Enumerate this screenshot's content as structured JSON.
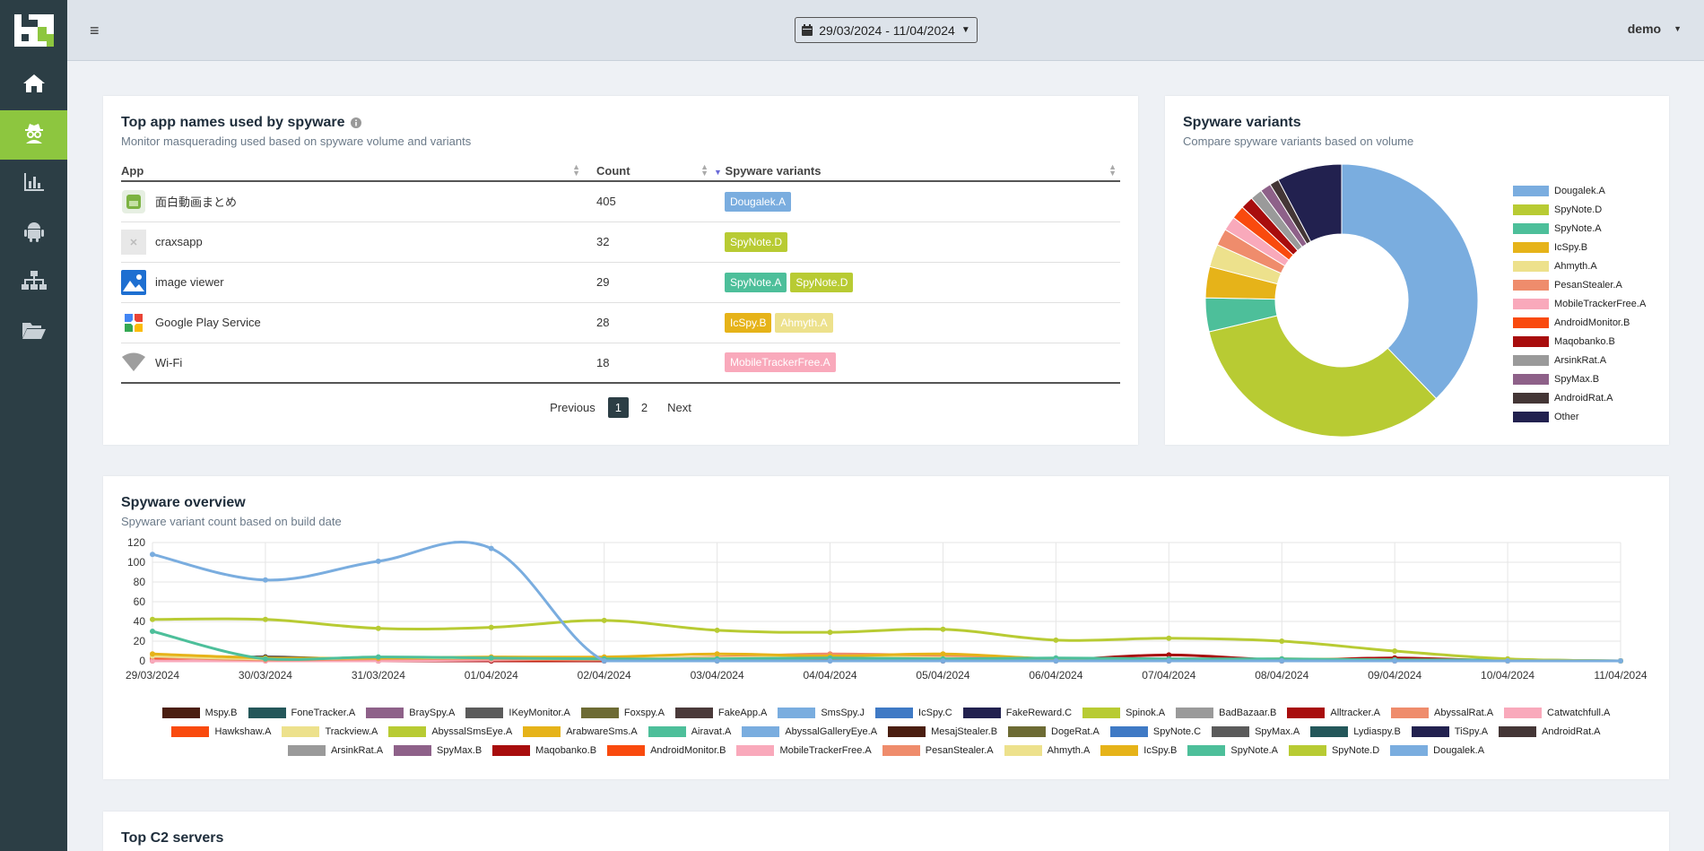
{
  "nav": [
    {
      "name": "home-icon",
      "active": false
    },
    {
      "name": "spy-icon",
      "active": true
    },
    {
      "name": "bar-chart-icon",
      "active": false
    },
    {
      "name": "android-icon",
      "active": false
    },
    {
      "name": "sitemap-icon",
      "active": false
    },
    {
      "name": "folder-open-icon",
      "active": false
    }
  ],
  "topbar": {
    "menu_icon": "≡",
    "date_range": "29/03/2024 - 11/04/2024",
    "user": "demo"
  },
  "top_apps": {
    "title": "Top app names used by spyware",
    "subtitle": "Monitor masquerading used based on spyware volume and variants",
    "columns": {
      "app": "App",
      "count": "Count",
      "variants": "Spyware variants"
    },
    "rows": [
      {
        "app": "面白動画まとめ",
        "icon": "green-app-icon",
        "count": "405",
        "variants": [
          {
            "label": "Dougalek.A",
            "color": "#7aaddf"
          }
        ]
      },
      {
        "app": "craxsapp",
        "icon": "placeholder-icon",
        "count": "32",
        "variants": [
          {
            "label": "SpyNote.D",
            "color": "#b8cb33"
          }
        ]
      },
      {
        "app": "image viewer",
        "icon": "image-viewer-icon",
        "count": "29",
        "variants": [
          {
            "label": "SpyNote.A",
            "color": "#4dbf9a"
          },
          {
            "label": "SpyNote.D",
            "color": "#b8cb33"
          }
        ]
      },
      {
        "app": "Google Play Service",
        "icon": "puzzle-icon",
        "count": "28",
        "variants": [
          {
            "label": "IcSpy.B",
            "color": "#e6b319"
          },
          {
            "label": "Ahmyth.A",
            "color": "#ede18c"
          }
        ]
      },
      {
        "app": "Wi-Fi",
        "icon": "wifi-icon",
        "count": "18",
        "variants": [
          {
            "label": "MobileTrackerFree.A",
            "color": "#f9a9bb"
          }
        ]
      }
    ],
    "pager": {
      "previous": "Previous",
      "pages": [
        "1",
        "2"
      ],
      "next": "Next"
    }
  },
  "variants_card": {
    "title": "Spyware variants",
    "subtitle": "Compare spyware variants based on volume"
  },
  "overview_card": {
    "title": "Spyware overview",
    "subtitle": "Spyware variant count based on build date"
  },
  "c2_card": {
    "title": "Top C2 servers"
  },
  "chart_data": [
    {
      "type": "pie",
      "title": "Spyware variants",
      "legend": "right",
      "slices": [
        {
          "label": "Dougalek.A",
          "value": 37.8,
          "color": "#7aaddf"
        },
        {
          "label": "SpyNote.D",
          "value": 33.5,
          "color": "#b8cb33"
        },
        {
          "label": "SpyNote.A",
          "value": 4.0,
          "color": "#4dbf9a"
        },
        {
          "label": "IcSpy.B",
          "value": 3.7,
          "color": "#e6b319"
        },
        {
          "label": "Ahmyth.A",
          "value": 2.7,
          "color": "#ede18c"
        },
        {
          "label": "PesanStealer.A",
          "value": 2.0,
          "color": "#ef8c6c"
        },
        {
          "label": "MobileTrackerFree.A",
          "value": 1.7,
          "color": "#f9a9bb"
        },
        {
          "label": "AndroidMonitor.B",
          "value": 1.6,
          "color": "#f94a0e"
        },
        {
          "label": "Maqobanko.B",
          "value": 1.5,
          "color": "#a80d0d"
        },
        {
          "label": "ArsinkRat.A",
          "value": 1.4,
          "color": "#9a9a9a"
        },
        {
          "label": "SpyMax.B",
          "value": 1.3,
          "color": "#8e6189"
        },
        {
          "label": "AndroidRat.A",
          "value": 1.1,
          "color": "#443636"
        },
        {
          "label": "Other",
          "value": 7.7,
          "color": "#22214f"
        }
      ]
    },
    {
      "type": "line",
      "title": "Spyware overview",
      "x": [
        "29/03/2024",
        "30/03/2024",
        "31/03/2024",
        "01/04/2024",
        "02/04/2024",
        "03/04/2024",
        "04/04/2024",
        "05/04/2024",
        "06/04/2024",
        "07/04/2024",
        "08/04/2024",
        "09/04/2024",
        "10/04/2024",
        "11/04/2024"
      ],
      "ylim": [
        0,
        120
      ],
      "yticks": [
        0,
        20,
        40,
        60,
        80,
        100,
        120
      ],
      "grid": true,
      "legend": "bottom",
      "series": [
        {
          "name": "Dougalek.A",
          "color": "#7aaddf",
          "values": [
            108,
            82,
            101,
            114,
            0,
            0,
            0,
            0,
            0,
            0,
            0,
            0,
            0,
            0
          ]
        },
        {
          "name": "SpyNote.D",
          "color": "#b8cb33",
          "values": [
            42,
            42,
            33,
            34,
            41,
            31,
            29,
            32,
            21,
            23,
            20,
            10,
            2,
            0
          ]
        },
        {
          "name": "SpyNote.A",
          "color": "#4dbf9a",
          "values": [
            30,
            2,
            4,
            3,
            2,
            2,
            3,
            2,
            3,
            2,
            2,
            1,
            1,
            0
          ]
        },
        {
          "name": "IcSpy.B",
          "color": "#e6b319",
          "values": [
            7,
            3,
            3,
            4,
            4,
            7,
            5,
            7,
            2,
            1,
            2,
            1,
            1,
            0
          ]
        },
        {
          "name": "Ahmyth.A",
          "color": "#ede18c",
          "values": [
            5,
            2,
            3,
            3,
            2,
            3,
            4,
            3,
            1,
            1,
            1,
            1,
            0,
            0
          ]
        },
        {
          "name": "PesanStealer.A",
          "color": "#ef8c6c",
          "values": [
            4,
            1,
            2,
            2,
            1,
            4,
            7,
            5,
            2,
            2,
            1,
            1,
            0,
            0
          ]
        },
        {
          "name": "MobileTrackerFree.A",
          "color": "#f9a9bb",
          "values": [
            0,
            0,
            0,
            1,
            2,
            3,
            6,
            3,
            1,
            2,
            1,
            0,
            0,
            0
          ]
        },
        {
          "name": "AndroidMonitor.B",
          "color": "#f94a0e",
          "values": [
            3,
            1,
            1,
            1,
            1,
            1,
            2,
            1,
            1,
            1,
            0,
            0,
            0,
            0
          ]
        },
        {
          "name": "Maqobanko.B",
          "color": "#a80d0d",
          "values": [
            0,
            0,
            0,
            0,
            0,
            1,
            1,
            0,
            1,
            6,
            1,
            3,
            0,
            0
          ]
        },
        {
          "name": "ArsinkRat.A",
          "color": "#9a9a9a",
          "values": [
            2,
            1,
            1,
            1,
            0,
            1,
            1,
            1,
            0,
            1,
            0,
            0,
            0,
            0
          ]
        },
        {
          "name": "SpyMax.B",
          "color": "#8e6189",
          "values": [
            1,
            1,
            1,
            0,
            1,
            1,
            0,
            1,
            0,
            1,
            0,
            1,
            0,
            0
          ]
        },
        {
          "name": "AndroidRat.A",
          "color": "#443636",
          "values": [
            2,
            4,
            1,
            1,
            1,
            1,
            1,
            1,
            1,
            1,
            1,
            0,
            0,
            0
          ]
        },
        {
          "name": "Mspy.B",
          "color": "#4a1e10",
          "values": [
            1,
            1,
            0,
            1,
            0,
            0,
            1,
            0,
            0,
            0,
            0,
            0,
            0,
            0
          ]
        }
      ],
      "legend_entries": [
        {
          "name": "Mspy.B",
          "color": "#4a1e10"
        },
        {
          "name": "FoneTracker.A",
          "color": "#24575a"
        },
        {
          "name": "BraySpy.A",
          "color": "#8e6189"
        },
        {
          "name": "IKeyMonitor.A",
          "color": "#5b5b5b"
        },
        {
          "name": "Foxspy.A",
          "color": "#6d6b34"
        },
        {
          "name": "FakeApp.A",
          "color": "#4a3a3a"
        },
        {
          "name": "SmsSpy.J",
          "color": "#7aaddf"
        },
        {
          "name": "IcSpy.C",
          "color": "#3f7ac5"
        },
        {
          "name": "FakeReward.C",
          "color": "#22214f"
        },
        {
          "name": "Spinok.A",
          "color": "#b8cb33"
        },
        {
          "name": "BadBazaar.B",
          "color": "#9a9a9a"
        },
        {
          "name": "Alltracker.A",
          "color": "#a80d0d"
        },
        {
          "name": "AbyssalRat.A",
          "color": "#ef8c6c"
        },
        {
          "name": "Catwatchfull.A",
          "color": "#f9a9bb"
        },
        {
          "name": "Hawkshaw.A",
          "color": "#f94a0e"
        },
        {
          "name": "Trackview.A",
          "color": "#ede18c"
        },
        {
          "name": "AbyssalSmsEye.A",
          "color": "#b8cb33"
        },
        {
          "name": "ArabwareSms.A",
          "color": "#e6b319"
        },
        {
          "name": "Airavat.A",
          "color": "#4dbf9a"
        },
        {
          "name": "AbyssalGalleryEye.A",
          "color": "#7aaddf"
        },
        {
          "name": "MesajStealer.B",
          "color": "#4a1e10"
        },
        {
          "name": "DogeRat.A",
          "color": "#6d6b34"
        },
        {
          "name": "SpyNote.C",
          "color": "#3f7ac5"
        },
        {
          "name": "SpyMax.A",
          "color": "#5b5b5b"
        },
        {
          "name": "Lydiaspy.B",
          "color": "#24575a"
        },
        {
          "name": "TiSpy.A",
          "color": "#22214f"
        },
        {
          "name": "AndroidRat.A",
          "color": "#443636"
        },
        {
          "name": "ArsinkRat.A",
          "color": "#9a9a9a"
        },
        {
          "name": "SpyMax.B",
          "color": "#8e6189"
        },
        {
          "name": "Maqobanko.B",
          "color": "#a80d0d"
        },
        {
          "name": "AndroidMonitor.B",
          "color": "#f94a0e"
        },
        {
          "name": "MobileTrackerFree.A",
          "color": "#f9a9bb"
        },
        {
          "name": "PesanStealer.A",
          "color": "#ef8c6c"
        },
        {
          "name": "Ahmyth.A",
          "color": "#ede18c"
        },
        {
          "name": "IcSpy.B",
          "color": "#e6b319"
        },
        {
          "name": "SpyNote.A",
          "color": "#4dbf9a"
        },
        {
          "name": "SpyNote.D",
          "color": "#b8cb33"
        },
        {
          "name": "Dougalek.A",
          "color": "#7aaddf"
        }
      ]
    }
  ]
}
